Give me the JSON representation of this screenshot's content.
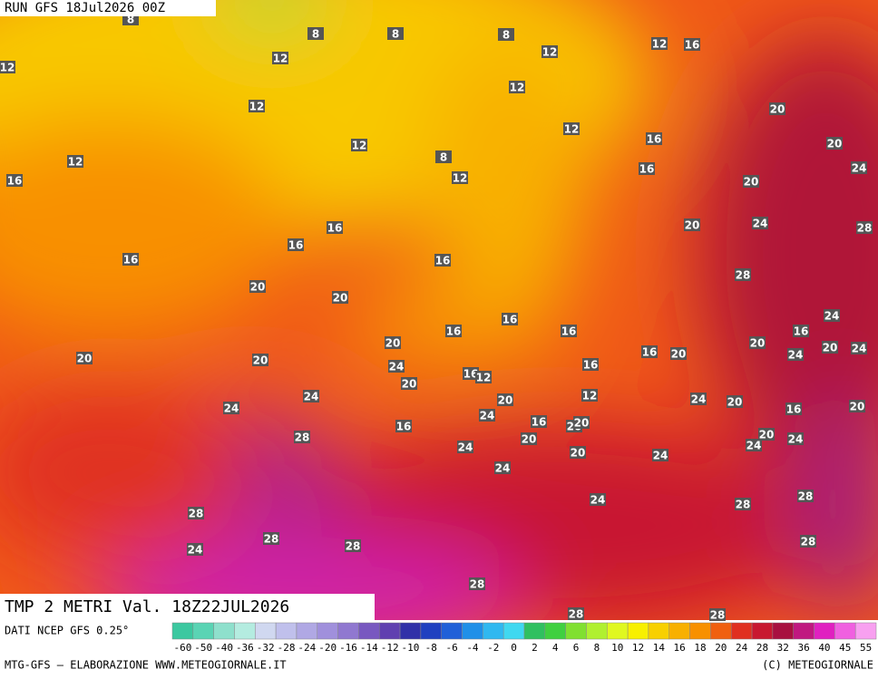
{
  "header": {
    "run": "RUN GFS 18Jul2026 00Z"
  },
  "caption": "TMP 2 METRI Val. 18Z22JUL2026",
  "map": {
    "contour_labels": [
      8,
      8,
      8,
      8,
      12,
      12,
      12,
      12,
      12,
      16,
      12,
      12,
      12,
      20,
      16,
      20,
      12,
      8,
      12,
      16,
      20,
      24,
      16,
      16,
      16,
      20,
      24,
      28,
      16,
      16,
      28,
      20,
      20,
      16,
      16,
      16,
      16,
      24,
      20,
      20,
      20,
      24,
      20,
      20,
      24,
      16,
      20,
      24,
      16,
      12,
      16,
      20,
      24,
      24,
      20,
      16,
      20,
      24,
      20,
      12,
      24,
      16,
      16,
      20,
      20,
      20,
      24,
      28,
      20,
      24,
      24,
      20,
      24,
      24,
      24,
      28,
      28,
      28,
      28,
      28,
      24,
      28,
      28,
      28,
      28
    ]
  },
  "colorbar": {
    "ticks": [
      -60,
      -50,
      -40,
      -36,
      -32,
      -28,
      -24,
      -20,
      -16,
      -14,
      -12,
      -10,
      -8,
      -6,
      -4,
      -2,
      0,
      2,
      4,
      6,
      8,
      10,
      12,
      14,
      16,
      18,
      20,
      24,
      28,
      32,
      36,
      40,
      45,
      55
    ],
    "colors": [
      "#3cc8a0",
      "#5ad4b4",
      "#8ee0cc",
      "#b4ece0",
      "#d0d8f0",
      "#c0c0ec",
      "#b0a8e4",
      "#a090dc",
      "#9078d0",
      "#7858c0",
      "#6040b0",
      "#3030a8",
      "#2040c0",
      "#2060d8",
      "#2090e8",
      "#30b8f0",
      "#40d8f0",
      "#30c060",
      "#40d040",
      "#80e030",
      "#b0f030",
      "#e0f820",
      "#f8f000",
      "#f8d000",
      "#f8b000",
      "#f89000",
      "#f06010",
      "#e03020",
      "#c81830",
      "#a81040",
      "#c01880",
      "#e020c0",
      "#f060e0",
      "#f8a0f0"
    ]
  },
  "footer": {
    "source": "DATI NCEP GFS 0.25°",
    "credit_left": "MTG-GFS — ELABORAZIONE WWW.METEOGIORNALE.IT",
    "credit_right": "(C) METEOGIORNALE"
  }
}
